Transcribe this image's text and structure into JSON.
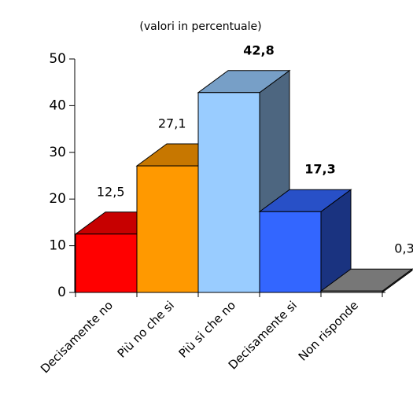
{
  "chart_data": {
    "type": "bar3d",
    "subtitle": "(valori in percentuale)",
    "categories": [
      "Decisamente no",
      "Più no che si",
      "Più si che no",
      "Decisamente si",
      "Non risponde"
    ],
    "values": [
      12.5,
      27.1,
      42.8,
      17.3,
      0.3
    ],
    "value_labels": [
      "12,5",
      "27,1",
      "42,8",
      "17,3",
      "0,3"
    ],
    "value_label_bold": [
      false,
      false,
      true,
      true,
      false
    ],
    "colors": [
      "#ff0000",
      "#ff9900",
      "#99ccff",
      "#3366ff",
      "#999999"
    ],
    "ylim": [
      0,
      50
    ],
    "yticks": [
      0,
      10,
      20,
      30,
      40,
      50
    ]
  }
}
